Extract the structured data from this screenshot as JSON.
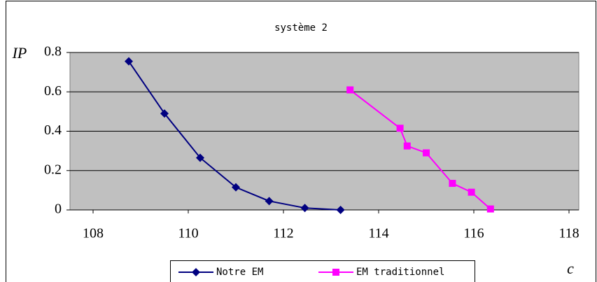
{
  "chart_data": {
    "type": "line",
    "title": "système 2",
    "y_label": "IP",
    "x_label": "c",
    "xlim": [
      108,
      118
    ],
    "xticks": [
      108,
      110,
      112,
      114,
      116,
      118
    ],
    "ylim": [
      0,
      0.8
    ],
    "yticks": [
      0,
      0.2,
      0.4,
      0.6,
      0.8
    ],
    "grid": true,
    "legend": "bottom",
    "series": [
      {
        "name": "Notre EM",
        "color": "#000080",
        "marker": "diamond",
        "x": [
          108.75,
          109.5,
          110.25,
          111,
          111.7,
          112.45,
          113.2
        ],
        "values": [
          0.755,
          0.49,
          0.265,
          0.115,
          0.045,
          0.01,
          0
        ]
      },
      {
        "name": "EM traditionnel",
        "color": "#ff00ff",
        "marker": "square",
        "x": [
          113.4,
          114.45,
          114.6,
          115,
          115.55,
          115.95,
          116.35
        ],
        "values": [
          0.61,
          0.415,
          0.325,
          0.29,
          0.135,
          0.09,
          0.005
        ]
      }
    ]
  }
}
